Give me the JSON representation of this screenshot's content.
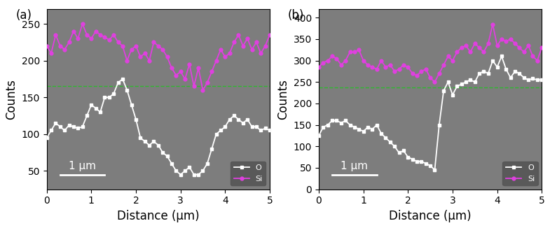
{
  "chart_data": [
    {
      "type": "line",
      "panel": "(a)",
      "x_label": "Distance (µm)",
      "y_label": "Counts",
      "scale_bar": "1 µm",
      "x": [
        0.0,
        0.1,
        0.2,
        0.3,
        0.4,
        0.5,
        0.6,
        0.7,
        0.8,
        0.9,
        1.0,
        1.1,
        1.2,
        1.3,
        1.4,
        1.5,
        1.6,
        1.7,
        1.8,
        1.9,
        2.0,
        2.1,
        2.2,
        2.3,
        2.4,
        2.5,
        2.6,
        2.7,
        2.8,
        2.9,
        3.0,
        3.1,
        3.2,
        3.3,
        3.4,
        3.5,
        3.6,
        3.7,
        3.8,
        3.9,
        4.0,
        4.1,
        4.2,
        4.3,
        4.4,
        4.5,
        4.6,
        4.7,
        4.8,
        4.9,
        5.0
      ],
      "series": [
        {
          "name": "O",
          "color": "#ffffff",
          "marker": "square",
          "line_style": "solid",
          "values": [
            95,
            105,
            115,
            110,
            105,
            112,
            110,
            108,
            110,
            125,
            140,
            135,
            130,
            150,
            150,
            155,
            170,
            175,
            160,
            140,
            120,
            95,
            90,
            85,
            90,
            85,
            75,
            70,
            60,
            50,
            45,
            50,
            55,
            45,
            45,
            50,
            60,
            80,
            100,
            105,
            110,
            120,
            125,
            120,
            115,
            120,
            110,
            110,
            105,
            108,
            105
          ]
        },
        {
          "name": "Si",
          "color": "#e040e0",
          "marker": "circle",
          "line_style": "solid",
          "values": [
            220,
            210,
            235,
            220,
            215,
            225,
            240,
            230,
            250,
            235,
            230,
            240,
            235,
            232,
            228,
            235,
            225,
            220,
            200,
            215,
            220,
            205,
            210,
            200,
            225,
            220,
            215,
            205,
            190,
            180,
            185,
            175,
            195,
            165,
            190,
            160,
            170,
            185,
            200,
            215,
            205,
            210,
            225,
            235,
            220,
            230,
            215,
            225,
            210,
            220,
            235
          ]
        }
      ],
      "reference_line": 165,
      "reference_color": "#2eb82e",
      "xlim": [
        0,
        5
      ],
      "xticks": [
        0,
        1,
        2,
        3,
        4,
        5
      ],
      "ylim": [
        25,
        270
      ],
      "yticks": [
        50,
        100,
        150,
        200,
        250
      ],
      "legend": "lower right",
      "grid": false
    },
    {
      "type": "line",
      "panel": "(b)",
      "x_label": "Distance (µm)",
      "y_label": "Counts",
      "scale_bar": "1 µm",
      "x": [
        0.0,
        0.1,
        0.2,
        0.3,
        0.4,
        0.5,
        0.6,
        0.7,
        0.8,
        0.9,
        1.0,
        1.1,
        1.2,
        1.3,
        1.4,
        1.5,
        1.6,
        1.7,
        1.8,
        1.9,
        2.0,
        2.1,
        2.2,
        2.3,
        2.4,
        2.5,
        2.6,
        2.7,
        2.8,
        2.9,
        3.0,
        3.1,
        3.2,
        3.3,
        3.4,
        3.5,
        3.6,
        3.7,
        3.8,
        3.9,
        4.0,
        4.1,
        4.2,
        4.3,
        4.4,
        4.5,
        4.6,
        4.7,
        4.8,
        4.9,
        5.0
      ],
      "series": [
        {
          "name": "O",
          "color": "#ffffff",
          "marker": "square",
          "line_style": "solid",
          "values": [
            125,
            145,
            150,
            160,
            160,
            155,
            160,
            150,
            145,
            140,
            135,
            145,
            140,
            150,
            130,
            120,
            110,
            100,
            85,
            90,
            75,
            70,
            65,
            65,
            60,
            55,
            45,
            150,
            230,
            250,
            220,
            240,
            245,
            250,
            255,
            250,
            270,
            275,
            270,
            300,
            285,
            310,
            280,
            260,
            275,
            270,
            260,
            255,
            258,
            255,
            255
          ]
        },
        {
          "name": "Si",
          "color": "#e040e0",
          "marker": "circle",
          "line_style": "solid",
          "values": [
            285,
            295,
            300,
            310,
            305,
            290,
            300,
            320,
            320,
            325,
            300,
            290,
            285,
            280,
            300,
            285,
            290,
            275,
            280,
            290,
            285,
            270,
            265,
            275,
            280,
            260,
            250,
            270,
            290,
            310,
            300,
            320,
            330,
            335,
            320,
            340,
            330,
            320,
            340,
            385,
            335,
            350,
            345,
            350,
            340,
            330,
            320,
            335,
            310,
            300,
            330
          ]
        }
      ],
      "reference_line": 237,
      "reference_color": "#2eb82e",
      "xlim": [
        0,
        5
      ],
      "xticks": [
        0,
        1,
        2,
        3,
        4,
        5
      ],
      "ylim": [
        0,
        420
      ],
      "yticks": [
        0,
        50,
        100,
        150,
        200,
        250,
        300,
        350,
        400
      ],
      "legend": "lower right",
      "grid": false
    }
  ]
}
